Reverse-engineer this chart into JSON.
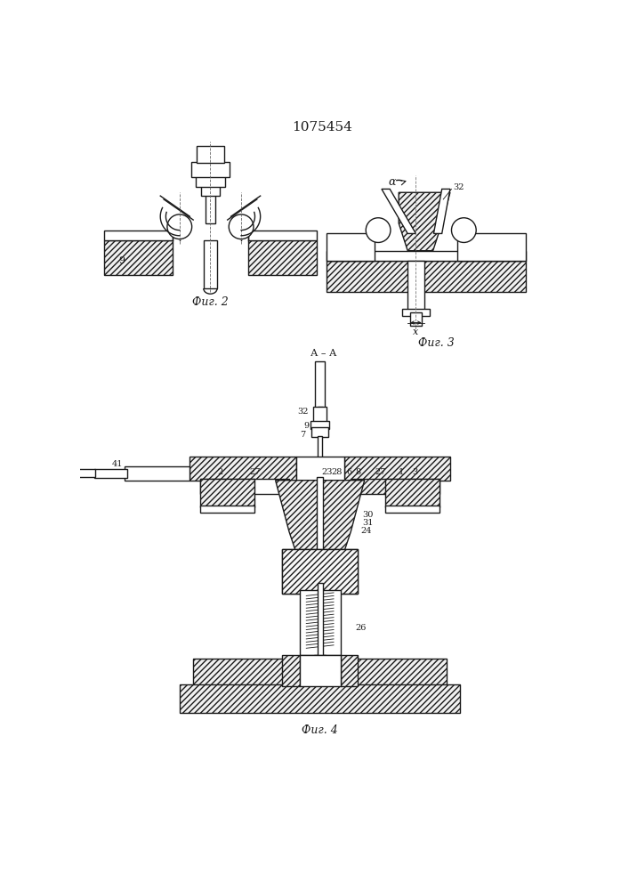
{
  "title": "1075454",
  "bg_color": "#ffffff",
  "line_color": "#1a1a1a",
  "fig2_label": "Фиг. 2",
  "fig3_label": "Фиг. 3",
  "fig4_label": "Фиг. 4",
  "label_AA": "А – А",
  "label_fontsize": 7,
  "caption_fontsize": 9,
  "title_fontsize": 11
}
